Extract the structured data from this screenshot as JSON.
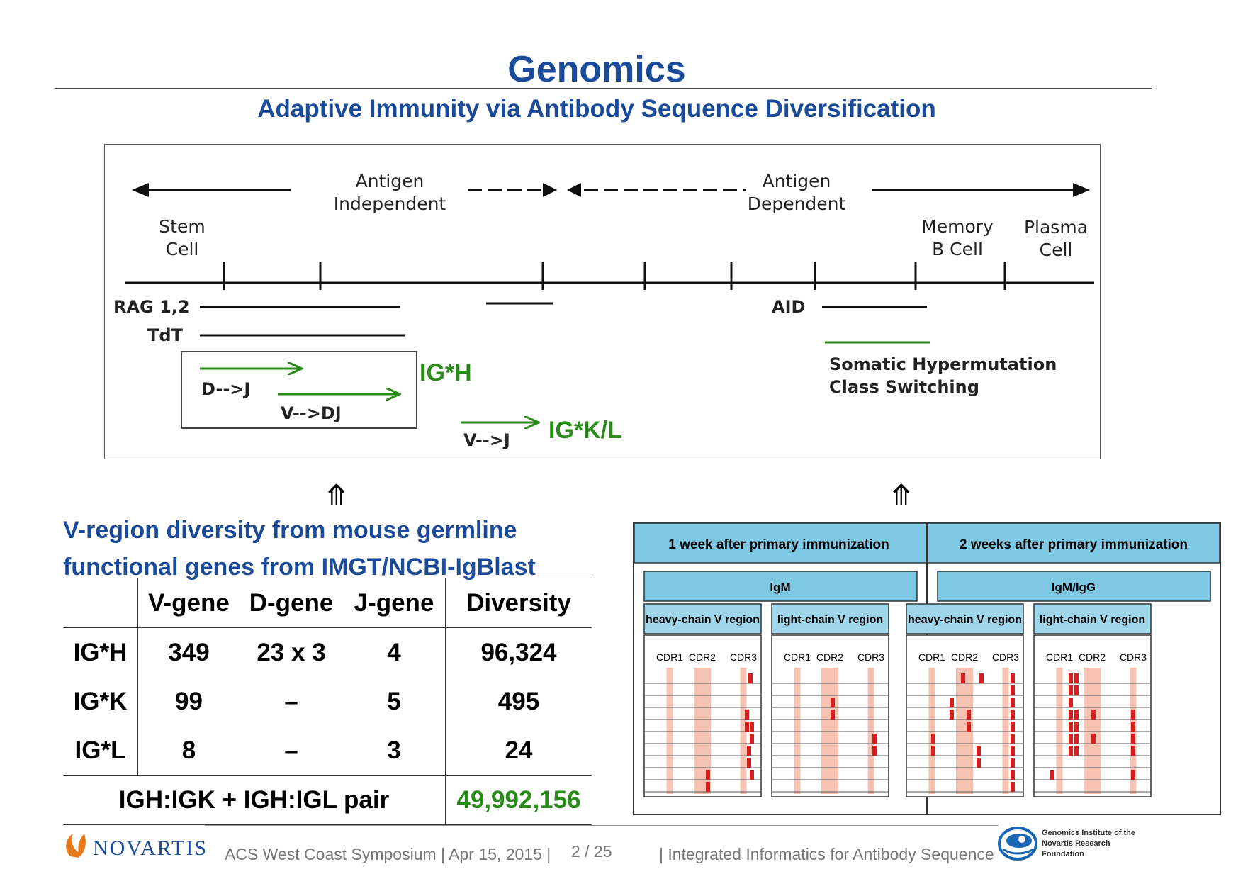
{
  "header": {
    "title": "Genomics",
    "subtitle": "Adaptive Immunity via Antibody Sequence Diversification"
  },
  "figure1": {
    "antigen_independent": [
      "Antigen",
      "Independent"
    ],
    "antigen_dependent": [
      "Antigen",
      "Dependent"
    ],
    "stem_cell": [
      "Stem",
      "Cell"
    ],
    "memory_b_cell": [
      "Memory",
      "B Cell"
    ],
    "plasma_cell": [
      "Plasma",
      "Cell"
    ],
    "rag": "RAG 1,2",
    "tdt": "TdT",
    "aid": "AID",
    "d_to_j": "D-->J",
    "v_to_dj": "V-->DJ",
    "v_to_j": "V-->J",
    "igh": "IG*H",
    "igkl": "IG*K/L",
    "shm": "Somatic Hypermutation",
    "class_switch": "Class Switching"
  },
  "up_arrow": "⤊",
  "vregion": {
    "heading_line1": "V-region diversity from mouse germline",
    "heading_line2": "functional genes from IMGT/NCBI-IgBlast",
    "columns": [
      "",
      "V-gene",
      "D-gene",
      "J-gene",
      "Diversity"
    ],
    "rows": [
      [
        "IG*H",
        "349",
        "23 x 3",
        "4",
        "96,324"
      ],
      [
        "IG*K",
        "99",
        "–",
        "5",
        "495"
      ],
      [
        "IG*L",
        "8",
        "–",
        "3",
        "24"
      ]
    ],
    "pair_label": "IGH:IGK + IGH:IGL pair",
    "pair_value": "49,992,156"
  },
  "figure2": {
    "week1": "1 week after primary  immunization",
    "week2": "2 weeks after primary immunization",
    "igm": "IgM",
    "igmigg": "IgM/IgG",
    "heavy": "heavy-chain V region",
    "light": "light-chain V region",
    "cdr1": "CDR1",
    "cdr2": "CDR2",
    "cdr3": "CDR3"
  },
  "footer": {
    "company": "NOVARTIS",
    "event": "ACS West Coast Symposium | Apr 15, 2015 |",
    "page": "2 / 25",
    "talk": "| Integrated Informatics for Antibody Sequence",
    "gnf_line1": "Genomics Institute of the",
    "gnf_line2": "Novartis Research",
    "gnf_line3": "Foundation"
  },
  "colors": {
    "title_blue": "#1a4a9a",
    "green": "#2a8a1a",
    "header_fill": "#7ec8e3",
    "cdr_fill": "#f6c3b3",
    "mutation_red": "#d62020",
    "novartis_orange": "#e87a1e",
    "gnf_blue": "#1a66b3"
  }
}
